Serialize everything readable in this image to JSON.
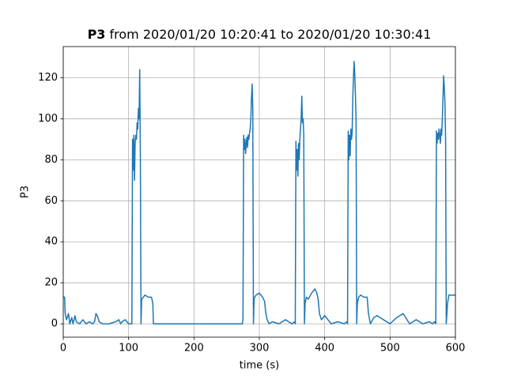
{
  "chart_data": {
    "type": "line",
    "title": [
      "P3",
      "from 2020/01/20 10:20:41 to 2020/01/20 10:30:41"
    ],
    "x_label": "time (s)",
    "y_label": "P3",
    "color": "#1f77b4",
    "grid": true,
    "xlim": [
      0,
      600
    ],
    "xticks": [
      0,
      100,
      200,
      300,
      400,
      500,
      600
    ],
    "ylim": [
      -6.5,
      135.2
    ],
    "yticks": [
      0,
      20,
      40,
      60,
      80,
      100,
      120
    ],
    "x": [
      0,
      2,
      3,
      5,
      8,
      10,
      13,
      15,
      18,
      20,
      25,
      30,
      35,
      40,
      45,
      48,
      50,
      52,
      55,
      60,
      70,
      80,
      85,
      88,
      90,
      95,
      100,
      104,
      105,
      106,
      107,
      108,
      109,
      110,
      111,
      112,
      113,
      114,
      115,
      116,
      117,
      118,
      119,
      120,
      125,
      130,
      135,
      137,
      138,
      140,
      200,
      270,
      274,
      275,
      276,
      277,
      278,
      279,
      280,
      281,
      282,
      283,
      284,
      285,
      286,
      287,
      288,
      289,
      290,
      291,
      292,
      293,
      295,
      300,
      305,
      308,
      310,
      312,
      315,
      320,
      330,
      340,
      350,
      354,
      355,
      356,
      357,
      358,
      359,
      360,
      361,
      362,
      363,
      364,
      365,
      366,
      367,
      368,
      369,
      370,
      372,
      375,
      380,
      385,
      388,
      390,
      392,
      395,
      400,
      410,
      420,
      430,
      434,
      435,
      436,
      437,
      438,
      439,
      440,
      441,
      442,
      443,
      444,
      445,
      446,
      447,
      448,
      449,
      450,
      452,
      455,
      460,
      465,
      467,
      470,
      475,
      480,
      490,
      500,
      510,
      520,
      530,
      540,
      550,
      560,
      565,
      568,
      570,
      571,
      572,
      573,
      574,
      575,
      576,
      577,
      578,
      579,
      580,
      581,
      582,
      583,
      584,
      585,
      586,
      588,
      590,
      595,
      600
    ],
    "values": [
      13,
      13,
      5,
      2,
      5,
      0,
      3,
      0,
      4,
      1,
      0,
      2,
      0,
      1,
      0,
      1,
      5,
      4,
      1,
      0,
      0,
      1,
      2,
      0,
      1,
      2,
      0,
      0,
      0,
      90,
      75,
      92,
      70,
      88,
      92,
      90,
      98,
      95,
      105,
      100,
      124,
      80,
      0,
      12,
      14,
      13,
      13,
      10,
      0,
      0,
      0,
      0,
      0,
      2,
      92,
      85,
      90,
      83,
      88,
      91,
      86,
      92,
      90,
      93,
      95,
      100,
      110,
      117,
      105,
      0,
      12,
      13,
      14,
      15,
      13,
      11,
      5,
      2,
      0,
      1,
      0,
      2,
      0,
      1,
      0,
      89,
      75,
      85,
      72,
      88,
      80,
      90,
      95,
      100,
      111,
      98,
      100,
      92,
      0,
      10,
      13,
      12,
      15,
      17,
      15,
      12,
      5,
      2,
      4,
      0,
      1,
      0,
      1,
      0,
      94,
      80,
      92,
      82,
      95,
      90,
      93,
      110,
      120,
      128,
      122,
      112,
      100,
      0,
      10,
      13,
      14,
      13,
      13,
      5,
      0,
      3,
      4,
      2,
      0,
      3,
      5,
      0,
      2,
      0,
      1,
      0,
      1,
      0,
      94,
      88,
      93,
      90,
      95,
      92,
      88,
      95,
      92,
      100,
      110,
      121,
      115,
      108,
      90,
      0,
      10,
      14,
      14,
      14
    ]
  }
}
